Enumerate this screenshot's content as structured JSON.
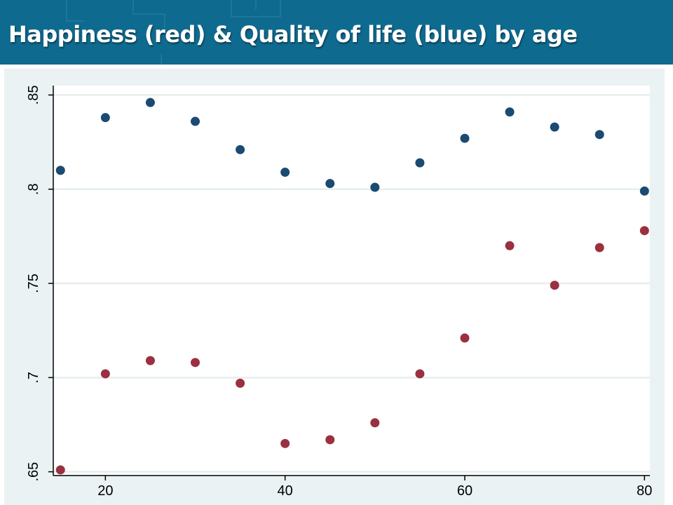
{
  "header": {
    "title": "Happiness (red) & Quality of life (blue) by age"
  },
  "colors": {
    "banner": "#0f6a8f",
    "plot_background": "#ffffff",
    "outer_background": "#eaf2f3",
    "gridline": "#e6eeee",
    "happiness_marker": "#9b3040",
    "quality_of_life_marker": "#1b4a72"
  },
  "chart_data": {
    "type": "scatter",
    "title": "Happiness (red) & Quality of life (blue) by age",
    "xlabel": "",
    "ylabel": "",
    "xlim": [
      14.2,
      80.6
    ],
    "ylim": [
      0.648,
      0.855
    ],
    "x_ticks": [
      20,
      40,
      60,
      80
    ],
    "x_tick_labels": [
      "20",
      "40",
      "60",
      "80"
    ],
    "y_ticks": [
      0.65,
      0.7,
      0.75,
      0.8,
      0.85
    ],
    "y_tick_labels": [
      ".65",
      ".7",
      ".75",
      ".8",
      ".85"
    ],
    "grid": true,
    "x": [
      15,
      20,
      25,
      30,
      35,
      40,
      45,
      50,
      55,
      60,
      65,
      70,
      75,
      80
    ],
    "series": [
      {
        "color": "#9b3040",
        "values": [
          0.651,
          0.702,
          0.709,
          0.708,
          0.697,
          0.665,
          0.667,
          0.676,
          0.702,
          0.721,
          0.77,
          0.749,
          0.769,
          0.778
        ]
      },
      {
        "color": "#1b4a72",
        "values": [
          0.81,
          0.838,
          0.846,
          0.836,
          0.821,
          0.809,
          0.803,
          0.801,
          0.814,
          0.827,
          0.841,
          0.833,
          0.829,
          0.799
        ]
      }
    ]
  }
}
